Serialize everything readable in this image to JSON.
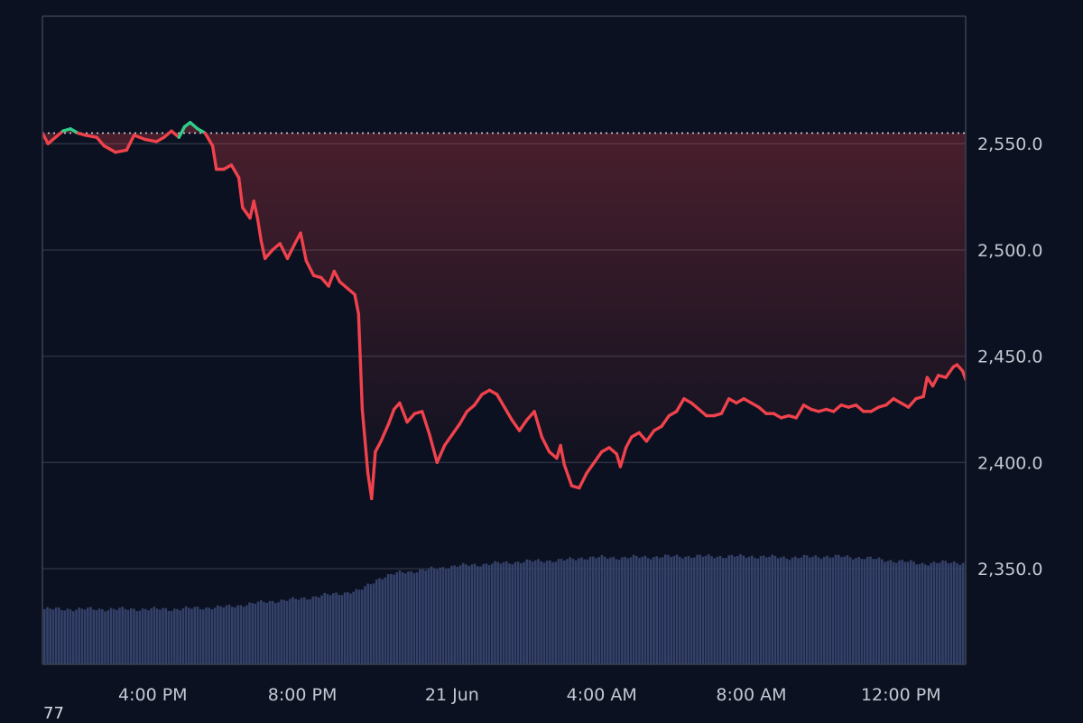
{
  "corner_label": "77",
  "colors": {
    "background": "#0b1120",
    "grid": "#2a3140",
    "frame": "#3a4150",
    "up": "#2fcf8a",
    "down": "#f0424c",
    "volume": "#34416a",
    "reference_line": "#c9ccd4",
    "tick_text": "#c3c8d2"
  },
  "chart_data": {
    "type": "line",
    "title": "",
    "xlabel": "",
    "ylabel": "",
    "reference_value": 2555,
    "ylim": [
      2305,
      2610
    ],
    "y_ticks": [
      {
        "value": 2550,
        "label": "2,550.0"
      },
      {
        "value": 2500,
        "label": "2,500.0"
      },
      {
        "value": 2450,
        "label": "2,450.0"
      },
      {
        "value": 2400,
        "label": "2,400.0"
      },
      {
        "value": 2350,
        "label": "2,350.0"
      }
    ],
    "x_ticks": [
      {
        "hour": 16,
        "label": "4:00 PM"
      },
      {
        "hour": 20,
        "label": "8:00 PM"
      },
      {
        "hour": 24,
        "label": "21 Jun"
      },
      {
        "hour": 28,
        "label": "4:00 AM"
      },
      {
        "hour": 32,
        "label": "8:00 AM"
      },
      {
        "hour": 36,
        "label": "12:00 PM"
      }
    ],
    "xlim_hours": [
      13.05,
      37.73
    ],
    "series": [
      {
        "points": [
          [
            13.05,
            2555
          ],
          [
            13.2,
            2550
          ],
          [
            13.4,
            2553
          ],
          [
            13.6,
            2556
          ],
          [
            13.8,
            2557
          ],
          [
            14.0,
            2555
          ],
          [
            14.2,
            2554
          ],
          [
            14.5,
            2553
          ],
          [
            14.7,
            2549
          ],
          [
            15.0,
            2546
          ],
          [
            15.3,
            2547
          ],
          [
            15.5,
            2554
          ],
          [
            15.8,
            2552
          ],
          [
            16.1,
            2551
          ],
          [
            16.3,
            2553
          ],
          [
            16.5,
            2556
          ],
          [
            16.7,
            2553
          ],
          [
            16.85,
            2558
          ],
          [
            17.0,
            2560
          ],
          [
            17.2,
            2557
          ],
          [
            17.4,
            2555
          ],
          [
            17.6,
            2549
          ],
          [
            17.7,
            2538
          ],
          [
            17.9,
            2538
          ],
          [
            18.1,
            2540
          ],
          [
            18.3,
            2534
          ],
          [
            18.4,
            2520
          ],
          [
            18.6,
            2515
          ],
          [
            18.7,
            2523
          ],
          [
            18.8,
            2515
          ],
          [
            18.9,
            2504
          ],
          [
            19.0,
            2496
          ],
          [
            19.2,
            2500
          ],
          [
            19.4,
            2503
          ],
          [
            19.6,
            2496
          ],
          [
            19.8,
            2503
          ],
          [
            19.95,
            2508
          ],
          [
            20.1,
            2495
          ],
          [
            20.3,
            2488
          ],
          [
            20.5,
            2487
          ],
          [
            20.7,
            2483
          ],
          [
            20.85,
            2490
          ],
          [
            21.0,
            2485
          ],
          [
            21.2,
            2482
          ],
          [
            21.4,
            2479
          ],
          [
            21.5,
            2470
          ],
          [
            21.6,
            2425
          ],
          [
            21.75,
            2395
          ],
          [
            21.85,
            2383
          ],
          [
            21.95,
            2405
          ],
          [
            22.1,
            2410
          ],
          [
            22.3,
            2418
          ],
          [
            22.45,
            2425
          ],
          [
            22.6,
            2428
          ],
          [
            22.8,
            2419
          ],
          [
            23.0,
            2423
          ],
          [
            23.2,
            2424
          ],
          [
            23.4,
            2413
          ],
          [
            23.6,
            2400
          ],
          [
            23.8,
            2408
          ],
          [
            24.0,
            2413
          ],
          [
            24.2,
            2418
          ],
          [
            24.4,
            2424
          ],
          [
            24.6,
            2427
          ],
          [
            24.8,
            2432
          ],
          [
            25.0,
            2434
          ],
          [
            25.2,
            2432
          ],
          [
            25.4,
            2426
          ],
          [
            25.6,
            2420
          ],
          [
            25.8,
            2415
          ],
          [
            26.0,
            2420
          ],
          [
            26.2,
            2424
          ],
          [
            26.4,
            2412
          ],
          [
            26.6,
            2405
          ],
          [
            26.8,
            2402
          ],
          [
            26.9,
            2408
          ],
          [
            27.0,
            2399
          ],
          [
            27.2,
            2389
          ],
          [
            27.4,
            2388
          ],
          [
            27.6,
            2395
          ],
          [
            27.8,
            2400
          ],
          [
            28.0,
            2405
          ],
          [
            28.2,
            2407
          ],
          [
            28.4,
            2404
          ],
          [
            28.5,
            2398
          ],
          [
            28.65,
            2407
          ],
          [
            28.8,
            2412
          ],
          [
            29.0,
            2414
          ],
          [
            29.2,
            2410
          ],
          [
            29.4,
            2415
          ],
          [
            29.6,
            2417
          ],
          [
            29.8,
            2422
          ],
          [
            30.0,
            2424
          ],
          [
            30.2,
            2430
          ],
          [
            30.4,
            2428
          ],
          [
            30.6,
            2425
          ],
          [
            30.8,
            2422
          ],
          [
            31.0,
            2422
          ],
          [
            31.2,
            2423
          ],
          [
            31.4,
            2430
          ],
          [
            31.6,
            2428
          ],
          [
            31.8,
            2430
          ],
          [
            32.0,
            2428
          ],
          [
            32.2,
            2426
          ],
          [
            32.4,
            2423
          ],
          [
            32.6,
            2423
          ],
          [
            32.8,
            2421
          ],
          [
            33.0,
            2422
          ],
          [
            33.2,
            2421
          ],
          [
            33.4,
            2427
          ],
          [
            33.6,
            2425
          ],
          [
            33.8,
            2424
          ],
          [
            34.0,
            2425
          ],
          [
            34.2,
            2424
          ],
          [
            34.4,
            2427
          ],
          [
            34.6,
            2426
          ],
          [
            34.8,
            2427
          ],
          [
            35.0,
            2424
          ],
          [
            35.2,
            2424
          ],
          [
            35.4,
            2426
          ],
          [
            35.6,
            2427
          ],
          [
            35.8,
            2430
          ],
          [
            36.0,
            2428
          ],
          [
            36.2,
            2426
          ],
          [
            36.4,
            2430
          ],
          [
            36.6,
            2431
          ],
          [
            36.7,
            2440
          ],
          [
            36.85,
            2436
          ],
          [
            37.0,
            2441
          ],
          [
            37.2,
            2440
          ],
          [
            37.4,
            2445
          ],
          [
            37.5,
            2446
          ],
          [
            37.65,
            2443
          ],
          [
            37.73,
            2439
          ]
        ]
      }
    ],
    "volume": {
      "ylim": [
        0,
        100
      ],
      "points": [
        [
          13.05,
          45
        ],
        [
          15.0,
          45
        ],
        [
          16.5,
          45
        ],
        [
          18.0,
          47
        ],
        [
          19.0,
          51
        ],
        [
          19.8,
          53
        ],
        [
          20.5,
          56
        ],
        [
          21.5,
          60
        ],
        [
          22.0,
          70
        ],
        [
          22.6,
          75
        ],
        [
          23.0,
          76
        ],
        [
          24.0,
          80
        ],
        [
          25.0,
          82
        ],
        [
          26.0,
          84
        ],
        [
          27.0,
          85
        ],
        [
          27.5,
          87
        ],
        [
          28.5,
          87
        ],
        [
          30.0,
          88
        ],
        [
          31.0,
          88
        ],
        [
          32.0,
          88
        ],
        [
          33.0,
          87
        ],
        [
          34.0,
          88
        ],
        [
          35.0,
          87
        ],
        [
          35.5,
          85
        ],
        [
          36.0,
          84
        ],
        [
          36.5,
          82
        ],
        [
          37.0,
          83
        ],
        [
          37.73,
          83
        ]
      ]
    }
  }
}
